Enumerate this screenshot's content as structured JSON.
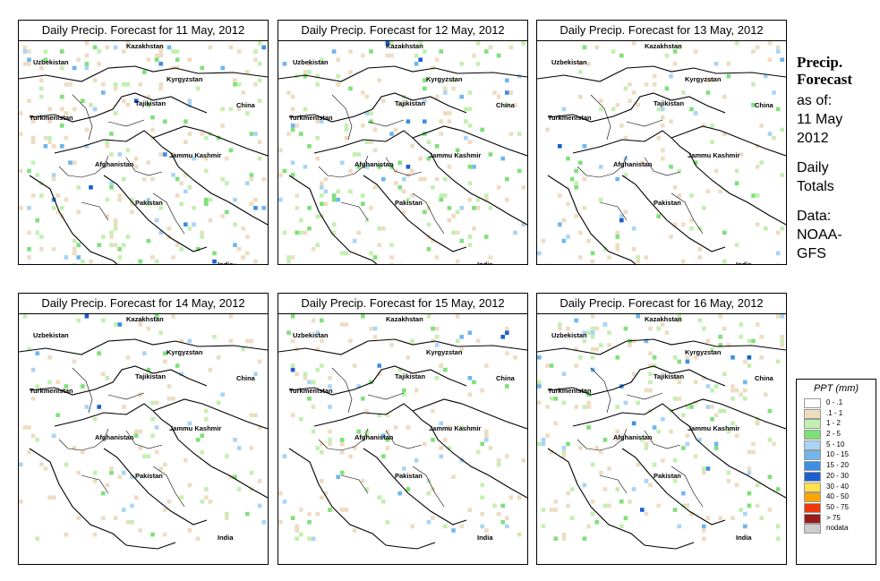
{
  "panels": [
    {
      "title": "Daily Precip. Forecast for  11 May, 2012",
      "intensity": 1.0
    },
    {
      "title": "Daily Precip. Forecast for  12 May, 2012",
      "intensity": 0.85
    },
    {
      "title": "Daily Precip. Forecast for  13 May, 2012",
      "intensity": 0.45
    },
    {
      "title": "Daily Precip. Forecast for  14 May, 2012",
      "intensity": 0.4
    },
    {
      "title": "Daily Precip. Forecast for  15 May, 2012",
      "intensity": 0.55
    },
    {
      "title": "Daily Precip. Forecast for  16 May, 2012",
      "intensity": 0.9
    }
  ],
  "map_labels": {
    "kazakhstan": "Kazakhstan",
    "uzbekistan": "Uzbekistan",
    "kyrgyzstan": "Kyrgyzstan",
    "tajikistan": "Tajikistan",
    "turkmenistan": "Turkmenistan",
    "china": "China",
    "afghanistan": "Afghanistan",
    "jammu_kashmir": "Jammu Kashmir",
    "pakistan": "Pakistan",
    "india": "India"
  },
  "sidebar": {
    "heading_line1": "Precip.",
    "heading_line2": "Forecast",
    "asof_line1": "as of:",
    "asof_line2": "11 May",
    "asof_line3": "2012",
    "totals_line1": "Daily",
    "totals_line2": "Totals",
    "source_line1": "Data:",
    "source_line2": "NOAA-",
    "source_line3": "GFS"
  },
  "legend": {
    "title": "PPT (mm)",
    "items": [
      {
        "label": "0 - .1",
        "color": "#ffffff"
      },
      {
        "label": ".1 - 1",
        "color": "#eedcc2"
      },
      {
        "label": "1 - 2",
        "color": "#c2f0b0"
      },
      {
        "label": "2 - 5",
        "color": "#7fe07a"
      },
      {
        "label": "5 - 10",
        "color": "#a9d4f5"
      },
      {
        "label": "10 - 15",
        "color": "#6fb6ee"
      },
      {
        "label": "15 - 20",
        "color": "#3d8fe2"
      },
      {
        "label": "20 - 30",
        "color": "#1c5fd0"
      },
      {
        "label": "30 - 40",
        "color": "#ffe14a"
      },
      {
        "label": "40 - 50",
        "color": "#ffa500"
      },
      {
        "label": "50 - 75",
        "color": "#ee3a0b"
      },
      {
        "label": "> 75",
        "color": "#991a1a"
      },
      {
        "label": "nodata",
        "color": "#cccccc"
      }
    ]
  }
}
